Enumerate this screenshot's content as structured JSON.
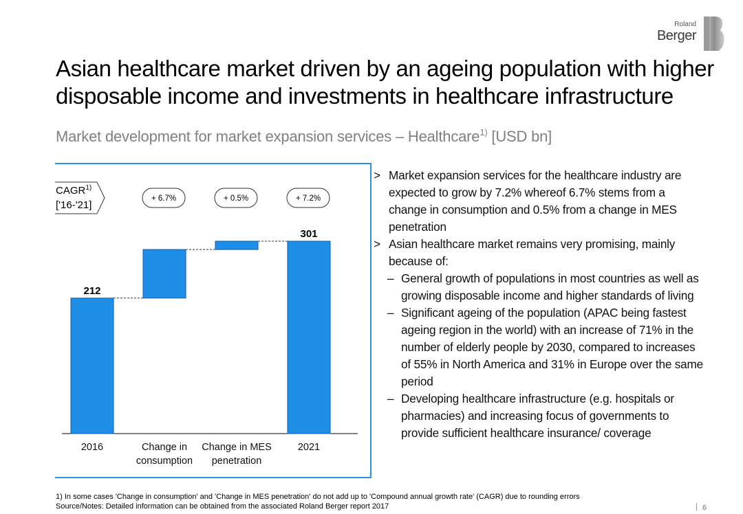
{
  "brand": {
    "small": "Roland",
    "big": "Berger"
  },
  "title": {
    "line1": "Asian healthcare market driven by an ageing population with higher",
    "line2": "disposable income and investments in healthcare infrastructure"
  },
  "subtitle": {
    "text": "Market development for market expansion services – Healthcare",
    "sup": "1)",
    "unit": " [USD bn]"
  },
  "cagr": {
    "label": "CAGR",
    "sup": "1)",
    "period": "['16-'21]",
    "values": [
      "+ 6.7%",
      "+ 0.5%",
      "+ 7.2%"
    ]
  },
  "chart_data": {
    "type": "bar",
    "subtype": "waterfall",
    "categories": [
      "2016",
      "Change in consumption",
      "Change in MES penetration",
      "2021"
    ],
    "category_labels": [
      [
        "2016"
      ],
      [
        "Change in",
        "consumption"
      ],
      [
        "Change in MES",
        "penetration"
      ],
      [
        "2021"
      ]
    ],
    "values": [
      212,
      76,
      13,
      301
    ],
    "bar_kind": [
      "total",
      "delta",
      "delta",
      "total"
    ],
    "data_labels": [
      "212",
      "",
      "",
      "301"
    ],
    "ylim": [
      0,
      340
    ],
    "colors": {
      "bar": "#1f8ee6",
      "bar_edge": "#0b5fb0"
    }
  },
  "bullets": [
    {
      "mark": ">",
      "text": "Market expansion services for the healthcare industry are expected to grow by 7.2% whereof 6.7% stems from a change in consumption and 0.5% from a change in MES penetration"
    },
    {
      "mark": ">",
      "text": "Asian healthcare market remains very promising, mainly because of:"
    }
  ],
  "sub_bullets": [
    {
      "mark": "–",
      "text": "General growth of populations in most countries as well as growing disposable income and higher standards of living"
    },
    {
      "mark": "–",
      "text": "Significant ageing of the population (APAC being fastest ageing region in the world) with an increase of 71% in the number of elderly people by 2030, compared to increases of 55% in North America and 31% in Europe over the same period"
    },
    {
      "mark": "–",
      "text": "Developing healthcare infrastructure (e.g. hospitals or pharmacies) and increasing focus of governments to provide sufficient healthcare insurance/ coverage"
    }
  ],
  "footnote": {
    "line1": "1) In some cases 'Change in consumption' and 'Change in MES penetration' do not add up to 'Compound annual growth rate' (CAGR) due to rounding errors",
    "line2": "Source/Notes: Detailed information can be obtained from the associated Roland Berger report 2017"
  },
  "page_number": "6"
}
